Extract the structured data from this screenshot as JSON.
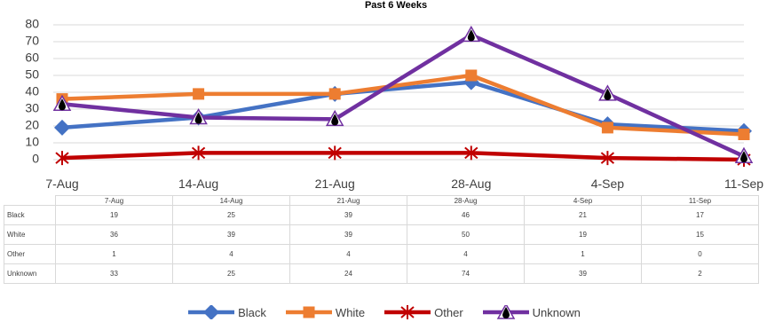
{
  "chart_data": {
    "type": "line",
    "title": "Past 6 Weeks",
    "categories": [
      "7-Aug",
      "14-Aug",
      "21-Aug",
      "28-Aug",
      "4-Sep",
      "11-Sep"
    ],
    "ylim": [
      0,
      80
    ],
    "yticks": [
      0,
      10,
      20,
      30,
      40,
      50,
      60,
      70,
      80
    ],
    "grid": true,
    "legend": "bottom",
    "series": [
      {
        "name": "Black",
        "color": "#4472c4",
        "marker": "diamond",
        "values": [
          19,
          25,
          39,
          46,
          21,
          17
        ]
      },
      {
        "name": "White",
        "color": "#ed7d31",
        "marker": "square",
        "values": [
          36,
          39,
          39,
          50,
          19,
          15
        ]
      },
      {
        "name": "Other",
        "color": "#c00000",
        "marker": "star",
        "values": [
          1,
          4,
          4,
          4,
          1,
          0
        ]
      },
      {
        "name": "Unknown",
        "color": "#7030a0",
        "marker": "triangle",
        "values": [
          33,
          25,
          24,
          74,
          39,
          2
        ]
      }
    ]
  }
}
